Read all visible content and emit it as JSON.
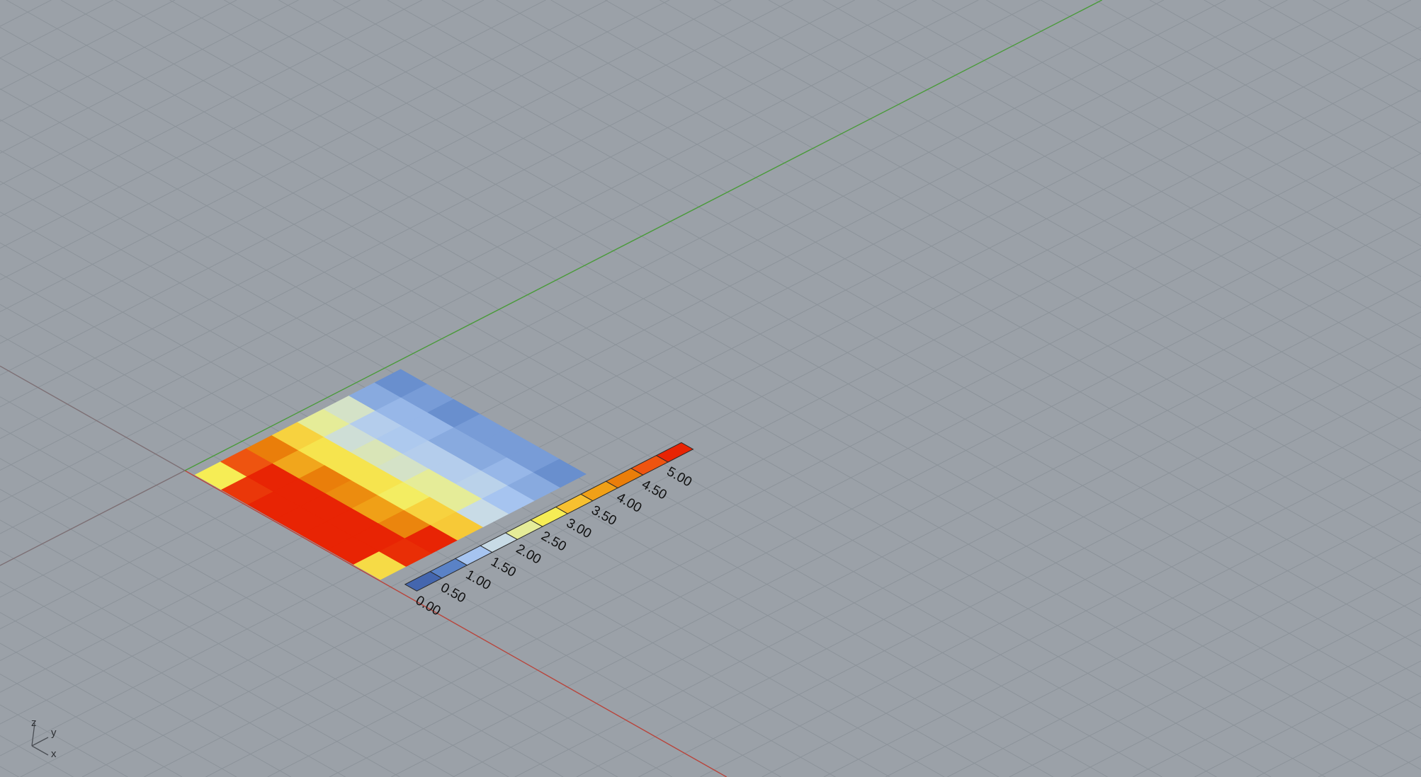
{
  "viewport": {
    "background": "#9ba1a8",
    "grid_color": "#8c939a",
    "x_axis_color": "#b8453c",
    "y_axis_color": "#4a9a3a",
    "origin_line_color": "#7d7075"
  },
  "heatmap": {
    "rows": [
      [
        2.5,
        4.5,
        4.0,
        2.8,
        2.0,
        1.7,
        0.8,
        0.6
      ],
      [
        4.8,
        5.0,
        3.4,
        2.6,
        1.6,
        1.2,
        0.9,
        0.7
      ],
      [
        5.0,
        5.0,
        4.0,
        2.6,
        1.8,
        1.1,
        0.9,
        0.6
      ],
      [
        5.0,
        5.0,
        3.8,
        2.6,
        1.7,
        1.2,
        0.8,
        0.7
      ],
      [
        5.0,
        5.0,
        3.5,
        2.4,
        2.0,
        1.2,
        0.8,
        0.7
      ],
      [
        5.0,
        5.0,
        3.9,
        2.8,
        2.0,
        1.3,
        0.9,
        0.7
      ],
      [
        2.7,
        4.9,
        5.0,
        2.9,
        1.5,
        1.0,
        0.8,
        0.6
      ]
    ]
  },
  "legend": {
    "colors": [
      "#4466ae",
      "#5a82c6",
      "#a6c4f0",
      "#c8dbe6",
      "#e5ec98",
      "#f6ed55",
      "#f7c030",
      "#f0a017",
      "#ea7e0a",
      "#ee5410",
      "#e82404"
    ],
    "labels": [
      "0.00",
      "0.50",
      "1.00",
      "1.50",
      "2.00",
      "2.50",
      "3.00",
      "3.50",
      "4.00",
      "4.50",
      "5.00"
    ]
  },
  "axis_icon": {
    "z": "z",
    "y": "y",
    "x": "x"
  }
}
